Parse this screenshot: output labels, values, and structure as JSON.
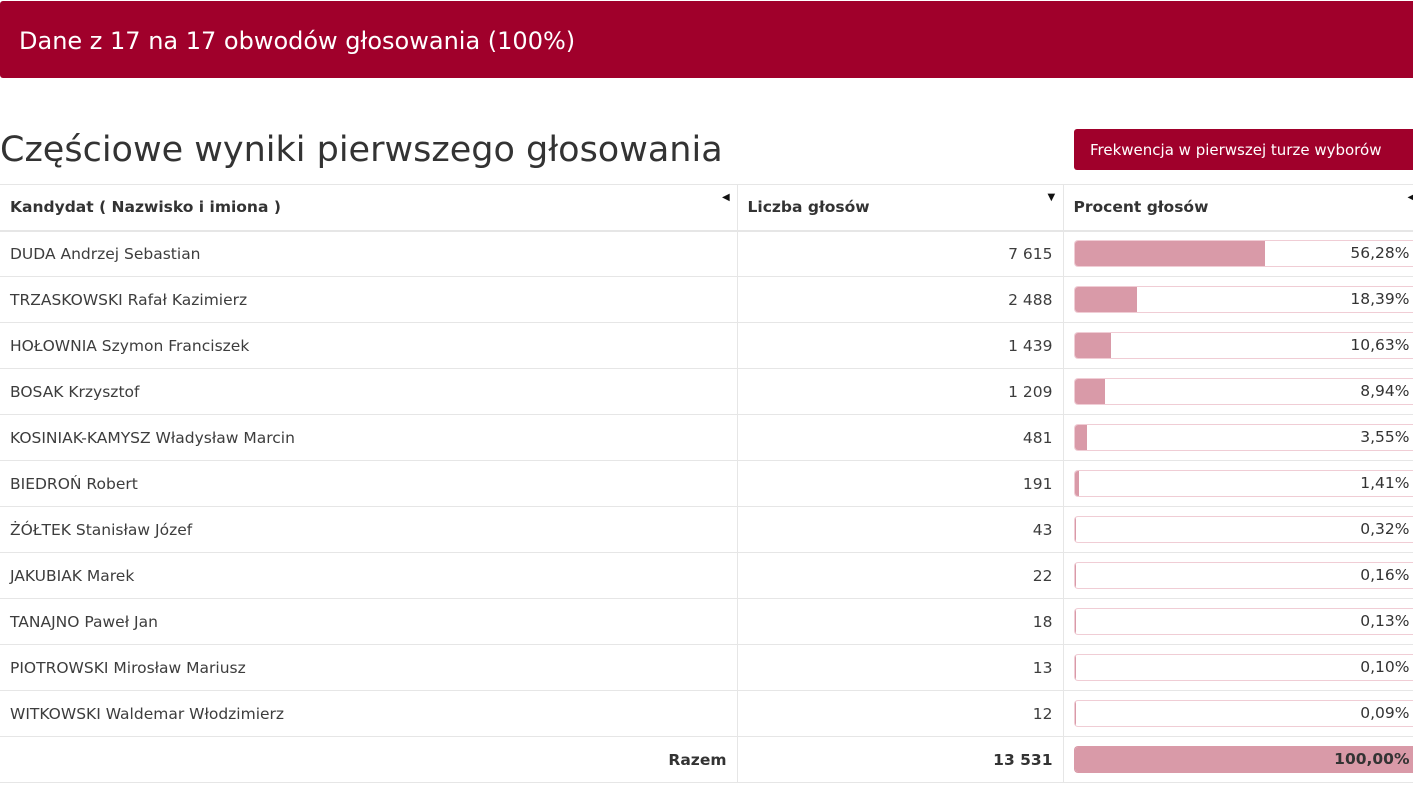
{
  "banner": {
    "text": "Dane z 17 na 17 obwodów głosowania (100%)"
  },
  "page_title": "Częściowe wyniki pierwszego głosowania",
  "turnout_button": "Frekwencja w pierwszej turze wyborów",
  "colors": {
    "accent": "#a0002b",
    "bar_fill": "#d99aa8",
    "bar_border": "#f0cdd5"
  },
  "table": {
    "headers": {
      "candidate": "Kandydat ( Nazwisko i imiona )",
      "votes": "Liczba głosów",
      "percent": "Procent głosów"
    },
    "sort_icons": {
      "candidate": "sort-left-icon",
      "votes": "sort-down-icon",
      "percent": "sort-left-icon"
    },
    "rows": [
      {
        "name": "DUDA Andrzej Sebastian",
        "votes": "7 615",
        "percent": "56,28%",
        "share": 56.28
      },
      {
        "name": "TRZASKOWSKI Rafał Kazimierz",
        "votes": "2 488",
        "percent": "18,39%",
        "share": 18.39
      },
      {
        "name": "HOŁOWNIA Szymon Franciszek",
        "votes": "1 439",
        "percent": "10,63%",
        "share": 10.63
      },
      {
        "name": "BOSAK Krzysztof",
        "votes": "1 209",
        "percent": "8,94%",
        "share": 8.94
      },
      {
        "name": "KOSINIAK-KAMYSZ Władysław Marcin",
        "votes": "481",
        "percent": "3,55%",
        "share": 3.55
      },
      {
        "name": "BIEDROŃ Robert",
        "votes": "191",
        "percent": "1,41%",
        "share": 1.41
      },
      {
        "name": "ŻÓŁTEK Stanisław Józef",
        "votes": "43",
        "percent": "0,32%",
        "share": 0.32
      },
      {
        "name": "JAKUBIAK Marek",
        "votes": "22",
        "percent": "0,16%",
        "share": 0.16
      },
      {
        "name": "TANAJNO Paweł Jan",
        "votes": "18",
        "percent": "0,13%",
        "share": 0.13
      },
      {
        "name": "PIOTROWSKI Mirosław Mariusz",
        "votes": "13",
        "percent": "0,10%",
        "share": 0.1
      },
      {
        "name": "WITKOWSKI Waldemar Włodzimierz",
        "votes": "12",
        "percent": "0,09%",
        "share": 0.09
      }
    ],
    "total": {
      "label": "Razem",
      "votes": "13 531",
      "percent": "100,00%",
      "share": 100
    }
  }
}
